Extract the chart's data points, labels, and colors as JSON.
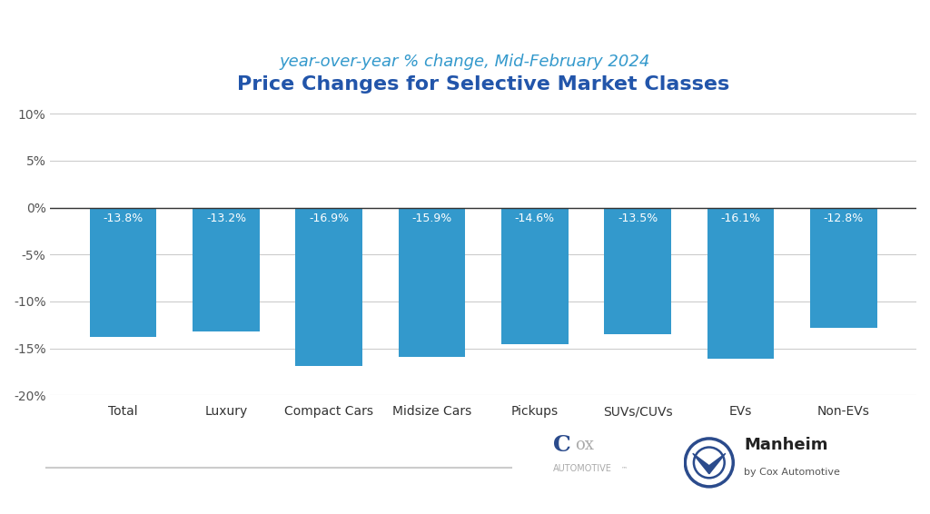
{
  "title": "Price Changes for Selective Market Classes",
  "subtitle": "year-over-year % change, Mid-February 2024",
  "categories": [
    "Total",
    "Luxury",
    "Compact Cars",
    "Midsize Cars",
    "Pickups",
    "SUVs/CUVs",
    "EVs",
    "Non-EVs"
  ],
  "values": [
    -13.8,
    -13.2,
    -16.9,
    -15.9,
    -14.6,
    -13.5,
    -16.1,
    -12.8
  ],
  "labels": [
    "-13.8%",
    "-13.2%",
    "-16.9%",
    "-15.9%",
    "-14.6%",
    "-13.5%",
    "-16.1%",
    "-12.8%"
  ],
  "bar_color": "#3399CC",
  "label_color": "#FFFFFF",
  "title_color": "#2255AA",
  "subtitle_color": "#3399CC",
  "background_color": "#FFFFFF",
  "ylim": [
    -20,
    12
  ],
  "yticks": [
    -20,
    -15,
    -10,
    -5,
    0,
    5,
    10
  ],
  "ytick_labels": [
    "-20%",
    "-15%",
    "-10%",
    "-5%",
    "0%",
    "5%",
    "10%"
  ],
  "grid_color": "#CCCCCC",
  "title_fontsize": 16,
  "subtitle_fontsize": 13,
  "label_fontsize": 9,
  "tick_fontsize": 10,
  "category_fontsize": 10
}
